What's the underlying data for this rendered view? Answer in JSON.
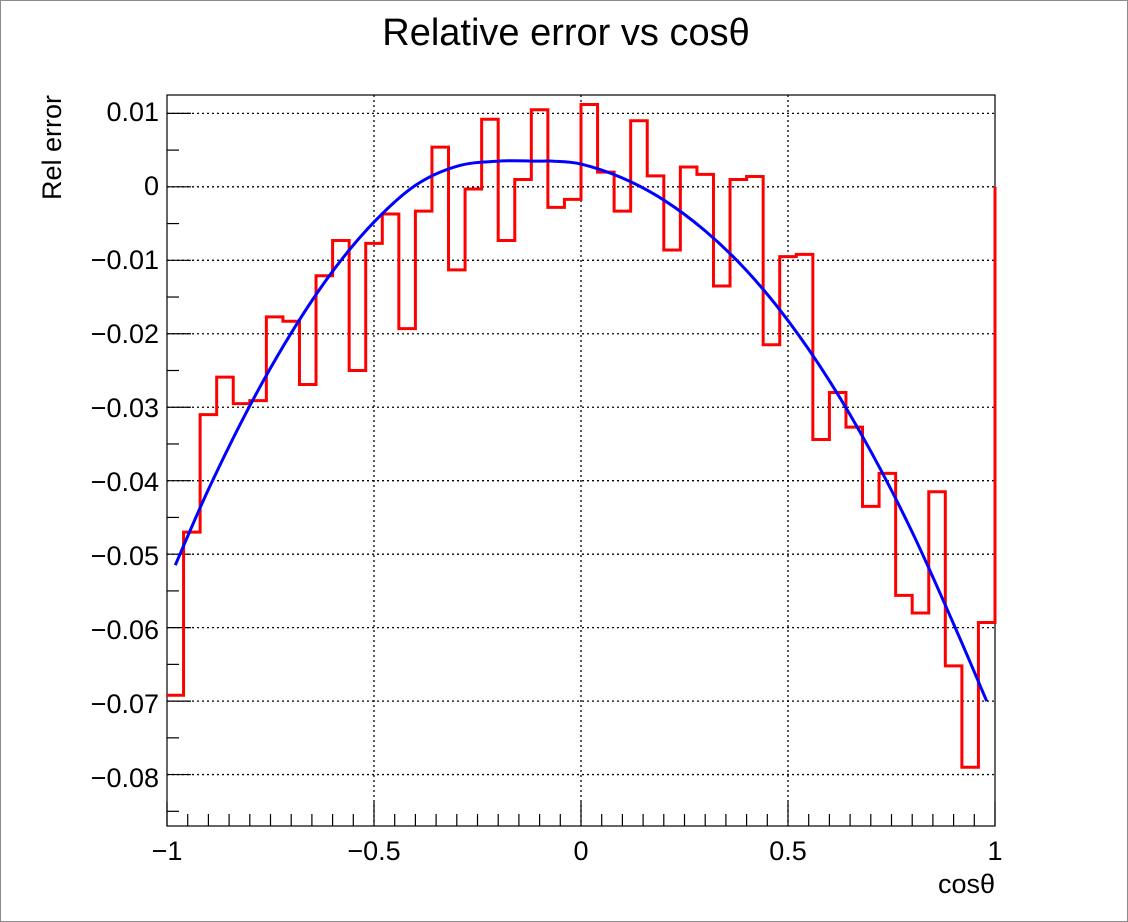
{
  "chart_data": {
    "type": "histogram",
    "title": "Relative error vs cosθ",
    "xlabel": "cosθ",
    "ylabel": "Rel error",
    "xlim": [
      -1,
      1
    ],
    "ylim": [
      -0.087,
      0.0125
    ],
    "grid": true,
    "x_ticks": [
      -1,
      -0.5,
      0,
      0.5,
      1
    ],
    "x_tick_labels": [
      "−1",
      "−0.5",
      "0",
      "0.5",
      "1"
    ],
    "y_ticks": [
      0.01,
      0,
      -0.01,
      -0.02,
      -0.03,
      -0.04,
      -0.05,
      -0.06,
      -0.07,
      -0.08
    ],
    "y_tick_labels": [
      "0.01",
      "0",
      "−0.01",
      "−0.02",
      "−0.03",
      "−0.04",
      "−0.05",
      "−0.06",
      "−0.07",
      "−0.08"
    ],
    "series": [
      {
        "kind": "step",
        "color": "#ff0000",
        "bin_edges": [
          -1,
          -0.96,
          -0.92,
          -0.88,
          -0.84,
          -0.8,
          -0.76,
          -0.72,
          -0.68,
          -0.64,
          -0.6,
          -0.56,
          -0.52,
          -0.48,
          -0.44,
          -0.4,
          -0.36,
          -0.32,
          -0.28,
          -0.24,
          -0.2,
          -0.16,
          -0.12,
          -0.08,
          -0.04,
          0,
          0.04,
          0.08,
          0.12,
          0.16,
          0.2,
          0.24,
          0.28,
          0.32,
          0.36,
          0.4,
          0.44,
          0.48,
          0.52,
          0.56,
          0.6,
          0.64,
          0.68,
          0.72,
          0.76,
          0.8,
          0.84,
          0.88,
          0.92,
          0.96,
          1
        ],
        "values": [
          -0.0692,
          -0.047,
          -0.031,
          -0.0259,
          -0.0295,
          -0.0291,
          -0.0177,
          -0.0183,
          -0.0269,
          -0.0121,
          -0.0073,
          -0.025,
          -0.0077,
          -0.0037,
          -0.0193,
          -0.0033,
          0.0054,
          -0.0113,
          -0.0003,
          0.0092,
          -0.0073,
          0.001,
          0.0105,
          -0.0028,
          -0.0017,
          0.0112,
          0.002,
          -0.0033,
          0.009,
          0.0015,
          -0.0086,
          0.0027,
          0.0017,
          -0.0135,
          0.001,
          0.0014,
          -0.0215,
          -0.0095,
          -0.0092,
          -0.0344,
          -0.028,
          -0.0327,
          -0.0435,
          -0.039,
          -0.0556,
          -0.058,
          -0.0415,
          -0.0652,
          -0.079,
          -0.0593
        ],
        "last_edge_drop_to": 0.0
      },
      {
        "kind": "curve",
        "color": "#0000ff",
        "x": [
          -0.98,
          -0.9,
          -0.8,
          -0.7,
          -0.6,
          -0.5,
          -0.4,
          -0.3,
          -0.2,
          -0.1,
          -0.07,
          0,
          0.1,
          0.2,
          0.3,
          0.4,
          0.5,
          0.6,
          0.7,
          0.8,
          0.9,
          0.98
        ],
        "y": [
          -0.0515,
          -0.0412,
          -0.0298,
          -0.0199,
          -0.0115,
          -0.0048,
          0.0002,
          0.0028,
          0.0035,
          0.0035,
          0.0035,
          0.0031,
          0.0012,
          -0.0018,
          -0.006,
          -0.0114,
          -0.0182,
          -0.0264,
          -0.036,
          -0.047,
          -0.0595,
          -0.07
        ]
      }
    ]
  }
}
